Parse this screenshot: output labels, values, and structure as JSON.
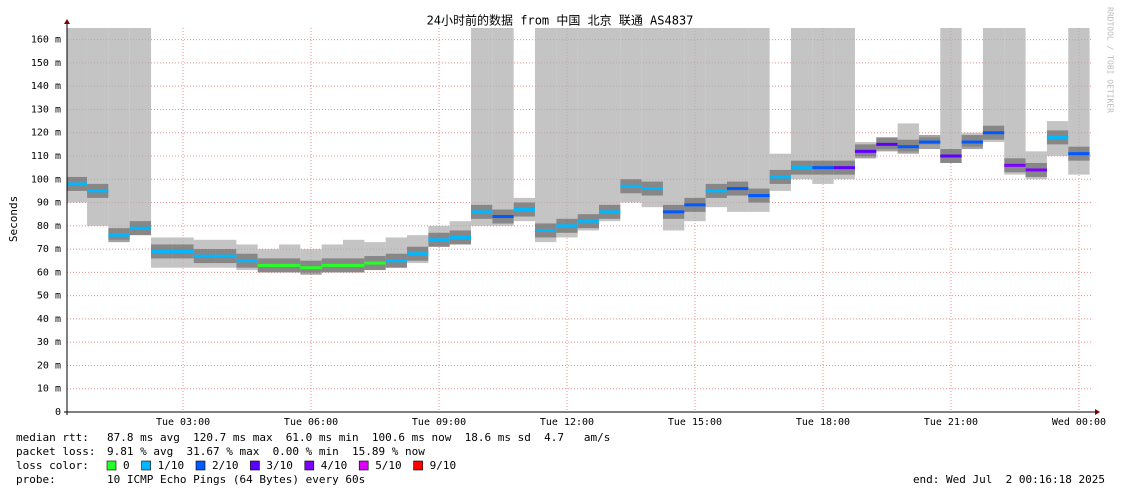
{
  "chart_data": {
    "type": "smoke",
    "title": "24小时前的数据 from 中国 北京 联通 AS4837",
    "y_label": "Seconds",
    "side_text": "RRDTOOL / TOBI OETIKER",
    "x": [
      0.5,
      1,
      1.5,
      2,
      2.5,
      3,
      3.5,
      4,
      4.5,
      5,
      5.5,
      6,
      6.5,
      7,
      7.5,
      8,
      8.5,
      9,
      9.5,
      10,
      10.5,
      11,
      11.5,
      12,
      12.5,
      13,
      13.5,
      14,
      14.5,
      15,
      15.5,
      16,
      16.5,
      17,
      17.5,
      18,
      18.5,
      19,
      19.5,
      20,
      20.5,
      21,
      21.5,
      22,
      22.5,
      23,
      23.5,
      24
    ],
    "median": [
      98,
      95,
      76,
      79,
      69,
      69,
      67,
      67,
      65,
      63,
      63,
      62,
      63,
      63,
      64,
      65,
      68,
      74,
      75,
      86,
      84,
      87,
      78,
      80,
      82,
      86,
      97,
      96,
      86,
      89,
      95,
      96,
      93,
      101,
      105,
      105,
      105,
      112,
      115,
      114,
      116,
      110,
      116,
      120,
      106,
      104,
      118,
      111
    ],
    "smoke_low": [
      90,
      80,
      74,
      76,
      62,
      62,
      62,
      62,
      61,
      60,
      60,
      60,
      60,
      60,
      61,
      62,
      64,
      71,
      72,
      80,
      80,
      82,
      73,
      75,
      78,
      82,
      90,
      88,
      78,
      82,
      88,
      86,
      86,
      95,
      100,
      98,
      100,
      110,
      113,
      112,
      115,
      107,
      114,
      116,
      102,
      100,
      110,
      102
    ],
    "smoke_high": [
      165,
      165,
      165,
      165,
      75,
      75,
      74,
      74,
      72,
      70,
      72,
      70,
      72,
      74,
      73,
      75,
      76,
      80,
      82,
      165,
      165,
      92,
      165,
      165,
      165,
      165,
      165,
      165,
      165,
      165,
      165,
      165,
      165,
      111,
      165,
      165,
      165,
      116,
      118,
      124,
      118,
      165,
      120,
      165,
      165,
      112,
      125,
      165
    ],
    "loss": [
      1,
      1,
      1,
      1,
      1,
      1,
      1,
      1,
      1,
      0,
      0,
      0,
      0,
      0,
      0,
      1,
      1,
      1,
      1,
      1,
      2,
      1,
      1,
      1,
      1,
      1,
      1,
      1,
      2,
      2,
      1,
      2,
      2,
      1,
      1,
      2,
      3,
      3,
      3,
      2,
      2,
      3,
      2,
      2,
      4,
      4,
      1,
      2
    ],
    "xlim": [
      0.28,
      24.33
    ],
    "xticks": [
      {
        "value": 3,
        "label": "Tue 03:00"
      },
      {
        "value": 6,
        "label": "Tue 06:00"
      },
      {
        "value": 9,
        "label": "Tue 09:00"
      },
      {
        "value": 12,
        "label": "Tue 12:00"
      },
      {
        "value": 15,
        "label": "Tue 15:00"
      },
      {
        "value": 18,
        "label": "Tue 18:00"
      },
      {
        "value": 21,
        "label": "Tue 21:00"
      },
      {
        "value": 24,
        "label": "Wed 00:00"
      }
    ],
    "ylim": [
      0,
      165
    ],
    "yticks": [
      0,
      {
        "value": 10,
        "label": "10 m"
      },
      {
        "value": 20,
        "label": "20 m"
      },
      {
        "value": 30,
        "label": "30 m"
      },
      {
        "value": 40,
        "label": "40 m"
      },
      {
        "value": 50,
        "label": "50 m"
      },
      {
        "value": 60,
        "label": "60 m"
      },
      {
        "value": 70,
        "label": "70 m"
      },
      {
        "value": 80,
        "label": "80 m"
      },
      {
        "value": 90,
        "label": "90 m"
      },
      {
        "value": 100,
        "label": "100 m"
      },
      {
        "value": 110,
        "label": "110 m"
      },
      {
        "value": 120,
        "label": "120 m"
      },
      {
        "value": 130,
        "label": "130 m"
      },
      {
        "value": 140,
        "label": "140 m"
      },
      {
        "value": 150,
        "label": "150 m"
      },
      {
        "value": 160,
        "label": "160 m"
      }
    ],
    "grid": true,
    "smoke_color": "#b0b0b0",
    "loss_legend": [
      {
        "name": "0",
        "color": "#26ff26"
      },
      {
        "name": "1/10",
        "color": "#00b8ff"
      },
      {
        "name": "2/10",
        "color": "#0059ff"
      },
      {
        "name": "3/10",
        "color": "#5e00ff"
      },
      {
        "name": "4/10",
        "color": "#7e00ff"
      },
      {
        "name": "5/10",
        "color": "#dd00ff"
      },
      {
        "name": "9/10",
        "color": "#ff0000"
      }
    ],
    "stats": {
      "median_rtt": {
        "label": "median rtt:",
        "text": "87.8 ms avg  120.7 ms max  61.0 ms min  100.6 ms now  18.6 ms sd  4.7   am/s"
      },
      "packet_loss": {
        "label": "packet loss:",
        "text": "9.81 % avg  31.67 % max  0.00 % min  15.89 % now"
      },
      "loss_color_label": "loss color:",
      "probe": {
        "label": "probe:",
        "text": "10 ICMP Echo Pings (64 Bytes) every 60s"
      },
      "end": "end: Wed Jul  2 00:16:18 2025"
    }
  }
}
